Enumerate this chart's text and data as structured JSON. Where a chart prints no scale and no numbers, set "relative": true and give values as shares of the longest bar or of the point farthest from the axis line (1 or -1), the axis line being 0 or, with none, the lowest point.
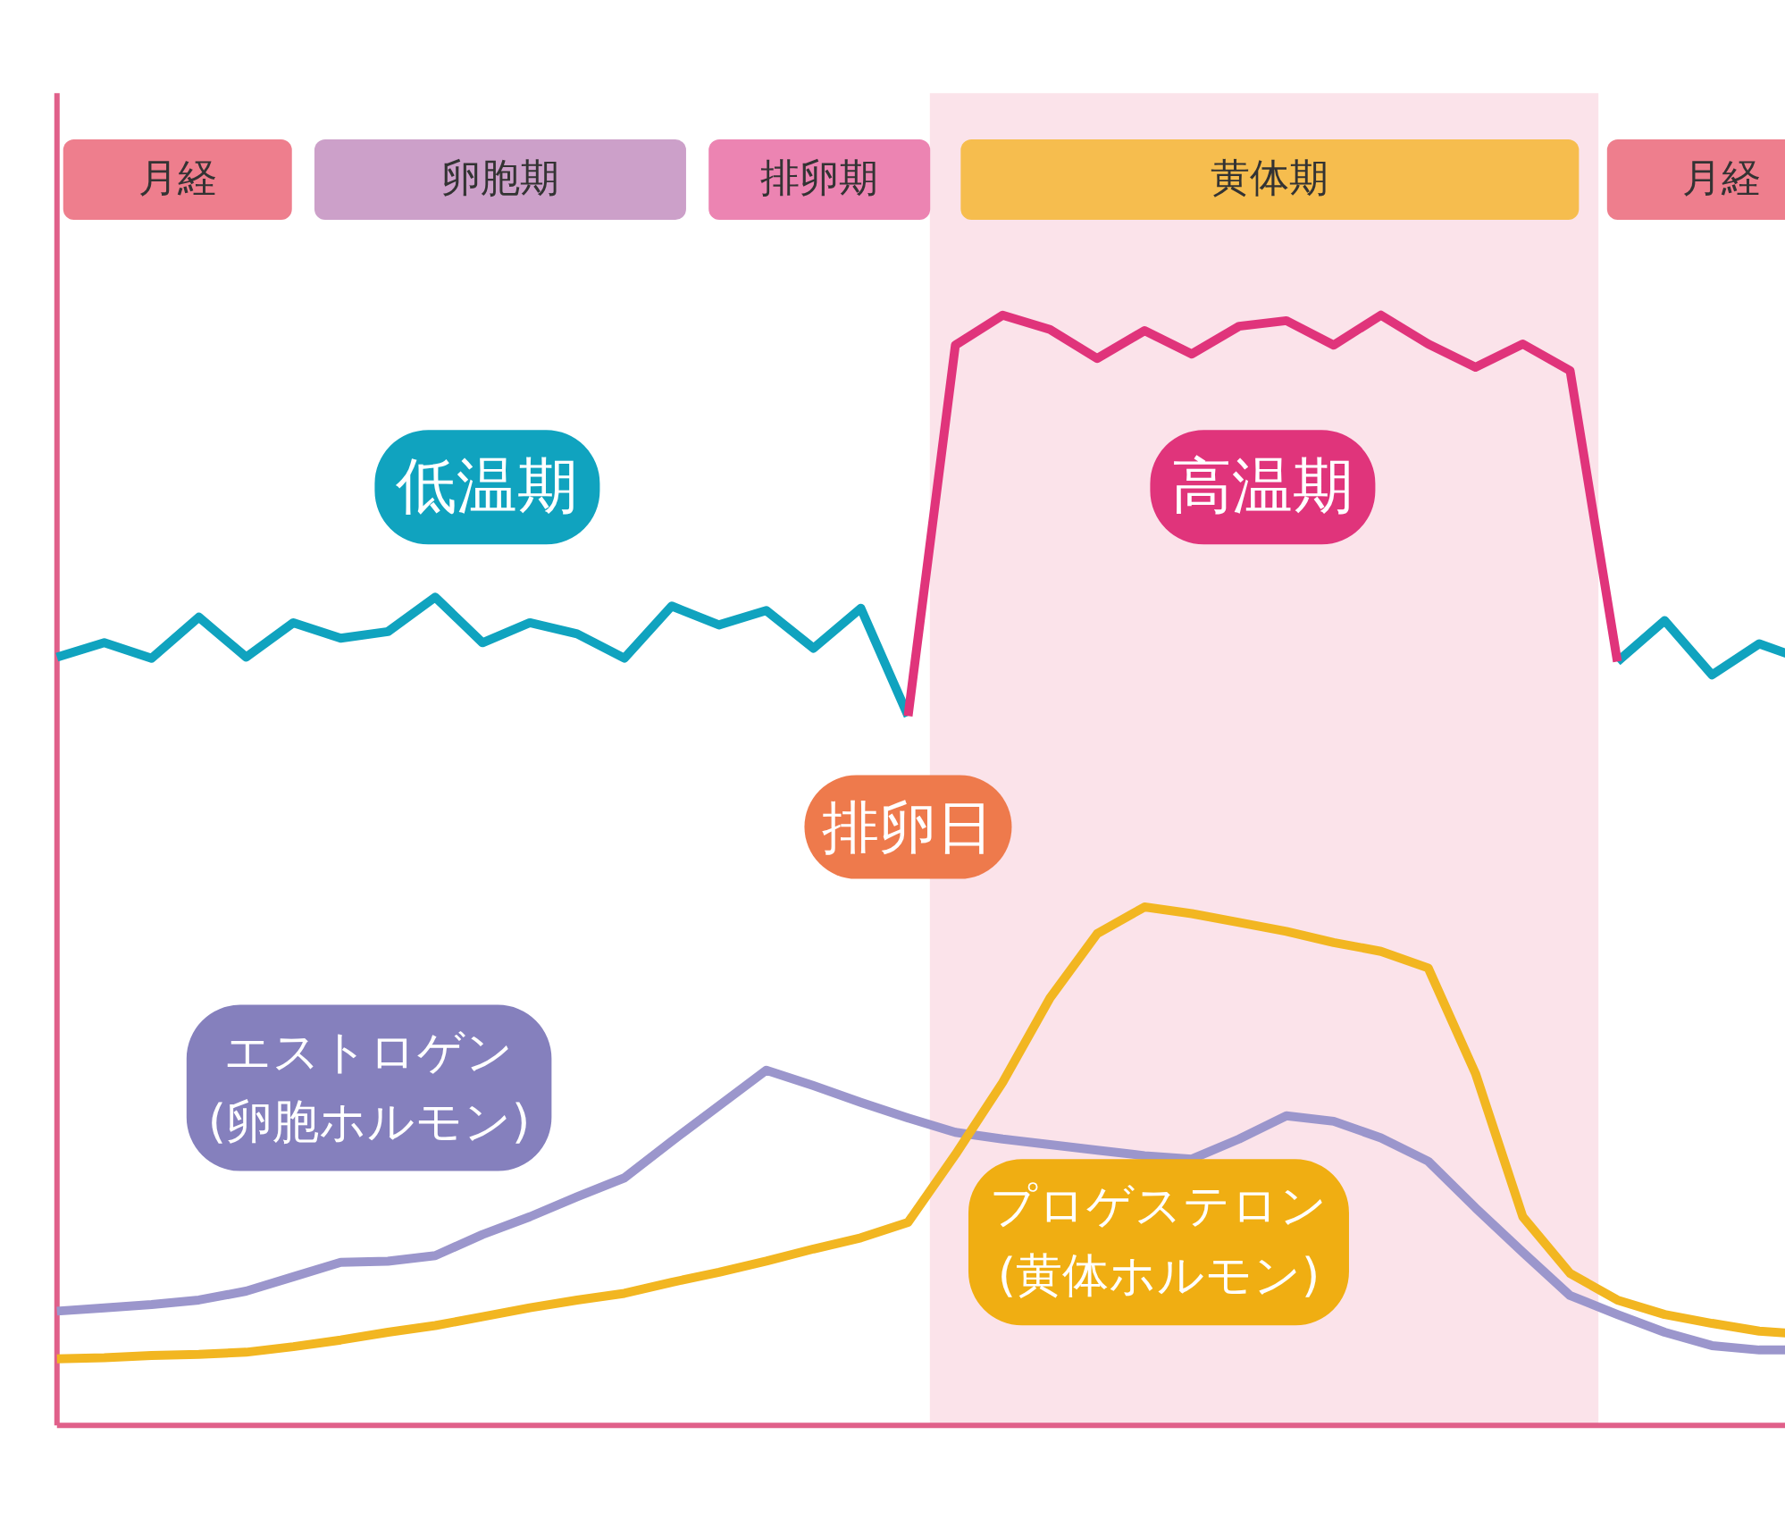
{
  "chart_data": {
    "type": "line",
    "relative": true,
    "tick_labels": false,
    "grid": false,
    "legend": false,
    "line_style": "solid",
    "marker": "none",
    "categories": [
      null,
      null,
      null,
      null,
      null,
      null,
      null,
      null,
      null,
      null,
      null,
      null,
      null,
      null,
      null,
      null,
      null,
      null,
      null,
      null,
      null,
      null,
      null,
      null,
      null,
      null,
      null,
      null,
      null,
      null,
      null,
      null,
      null,
      null,
      null,
      null,
      null,
      null
    ],
    "series": [
      {
        "name": "低温期",
        "color": "#10a3bf",
        "values": [
          0.692,
          0.705,
          0.691,
          0.728,
          0.692,
          0.723,
          0.709,
          0.715,
          0.746,
          0.705,
          0.723,
          0.713,
          0.691,
          0.738,
          0.721,
          0.734,
          0.7,
          0.736,
          0.639,
          null,
          null,
          null,
          null,
          null,
          null,
          null,
          null,
          null,
          null,
          null,
          null,
          null,
          null,
          0.688,
          0.725,
          0.676,
          0.704,
          0.689
        ]
      },
      {
        "name": "高温期",
        "color": "#e0347b",
        "values": [
          null,
          null,
          null,
          null,
          null,
          null,
          null,
          null,
          null,
          null,
          null,
          null,
          null,
          null,
          null,
          null,
          null,
          null,
          0.639,
          0.973,
          1,
          0.987,
          0.961,
          0.986,
          0.965,
          0.99,
          0.995,
          0.973,
          1,
          0.974,
          0.953,
          0.974,
          0.95,
          0.688,
          null,
          null,
          null,
          null
        ]
      },
      {
        "name": "エストロゲン\n(卵胞ホルモン)",
        "color": "#9b96cc",
        "values": [
          0.103,
          0.106,
          0.109,
          0.113,
          0.121,
          0.134,
          0.147,
          0.148,
          0.153,
          0.172,
          0.188,
          0.206,
          0.223,
          0.256,
          0.288,
          0.32,
          0.306,
          0.291,
          0.277,
          0.264,
          0.258,
          0.253,
          0.248,
          0.243,
          0.24,
          0.258,
          0.279,
          0.274,
          0.259,
          0.238,
          0.196,
          0.156,
          0.117,
          0.1,
          0.084,
          0.072,
          0.068,
          0.068
        ]
      },
      {
        "name": "プロゲステロン\n(黄体ホルモン)",
        "color": "#f2b621",
        "values": [
          0.06,
          0.061,
          0.063,
          0.064,
          0.066,
          0.071,
          0.077,
          0.084,
          0.09,
          0.098,
          0.106,
          0.113,
          0.119,
          0.129,
          0.138,
          0.148,
          0.159,
          0.169,
          0.183,
          0.244,
          0.309,
          0.385,
          0.443,
          0.467,
          0.461,
          0.453,
          0.445,
          0.435,
          0.427,
          0.412,
          0.317,
          0.188,
          0.137,
          0.113,
          0.1,
          0.092,
          0.085,
          0.082
        ]
      }
    ],
    "annotations": [
      "月経",
      "卵胞期",
      "排卵期",
      "黄体期",
      "月経",
      "排卵日"
    ]
  }
}
